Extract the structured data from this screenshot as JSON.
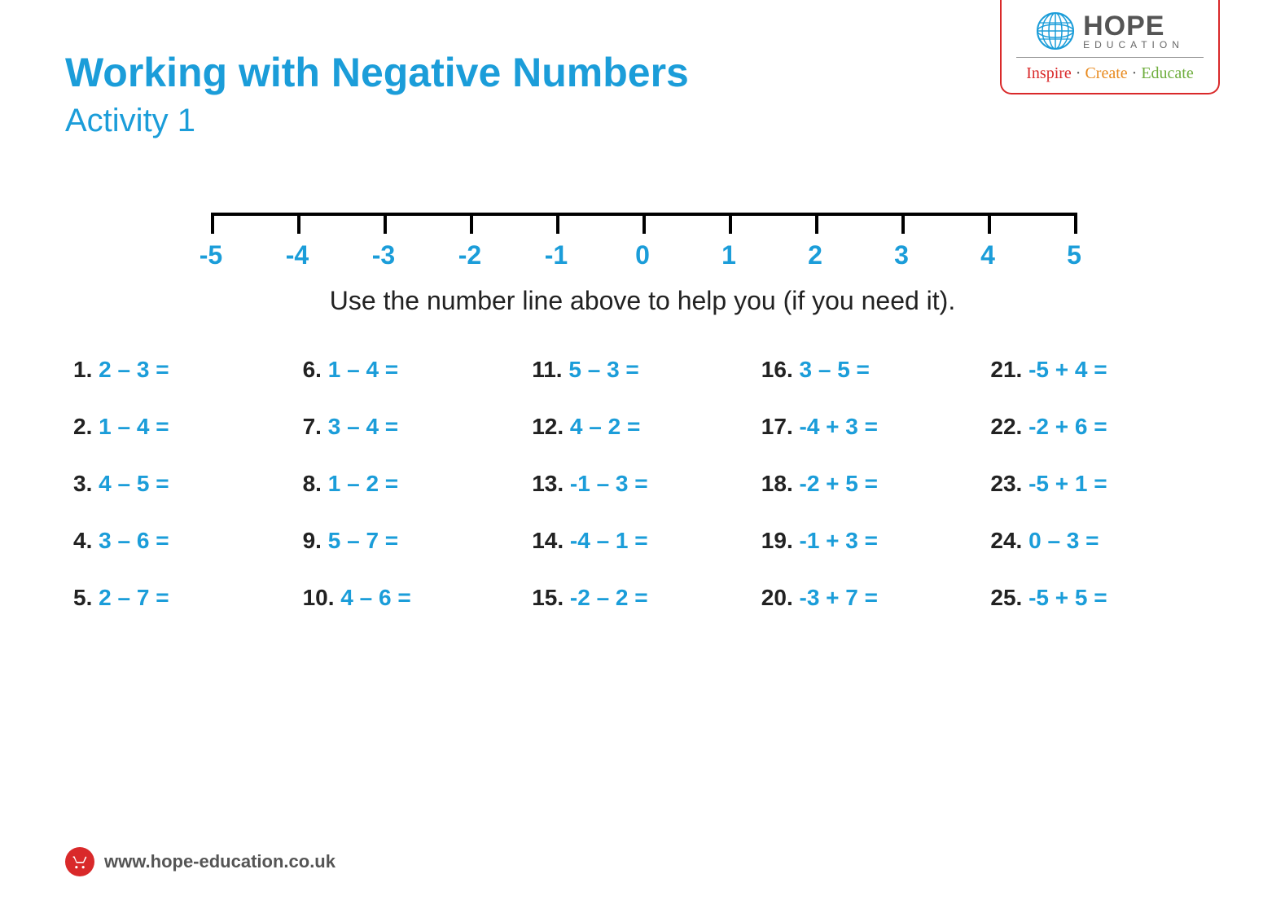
{
  "colors": {
    "primary_blue": "#1b9dd9",
    "text_dark": "#222222",
    "red": "#d9292a",
    "orange": "#e88a1e",
    "green": "#6fae3e",
    "grey": "#555555"
  },
  "header": {
    "title": "Working with Negative Numbers",
    "subtitle": "Activity 1"
  },
  "logo": {
    "brand_top": "HOPE",
    "brand_sub": "EDUCATION",
    "tagline_1": "Inspire",
    "tagline_2": "Create",
    "tagline_3": "Educate"
  },
  "number_line": {
    "min": -5,
    "max": 5,
    "ticks": [
      "-5",
      "-4",
      "-3",
      "-2",
      "-1",
      "0",
      "1",
      "2",
      "3",
      "4",
      "5"
    ],
    "label_color": "#1b9dd9",
    "label_fontsize": 32,
    "line_color": "#000000",
    "line_width": 4
  },
  "instruction": "Use the number line above to help you (if you need it).",
  "problems": [
    {
      "n": "1.",
      "expr": "2 – 3 ="
    },
    {
      "n": "2.",
      "expr": "1 – 4 ="
    },
    {
      "n": "3.",
      "expr": "4 – 5 ="
    },
    {
      "n": "4.",
      "expr": "3 – 6 ="
    },
    {
      "n": "5.",
      "expr": "2 – 7 ="
    },
    {
      "n": "6.",
      "expr": "1 – 4 ="
    },
    {
      "n": "7.",
      "expr": "3 – 4 ="
    },
    {
      "n": "8.",
      "expr": "1 – 2 ="
    },
    {
      "n": "9.",
      "expr": "5 – 7 ="
    },
    {
      "n": "10.",
      "expr": "4 – 6 ="
    },
    {
      "n": "11.",
      "expr": "5 – 3 ="
    },
    {
      "n": "12.",
      "expr": "4 – 2 ="
    },
    {
      "n": "13.",
      "expr": "-1 – 3 ="
    },
    {
      "n": "14.",
      "expr": "-4 – 1 ="
    },
    {
      "n": "15.",
      "expr": "-2 – 2 ="
    },
    {
      "n": "16.",
      "expr": "3 – 5 ="
    },
    {
      "n": "17.",
      "expr": "-4 + 3 ="
    },
    {
      "n": "18.",
      "expr": "-2 + 5 ="
    },
    {
      "n": "19.",
      "expr": "-1 + 3 ="
    },
    {
      "n": "20.",
      "expr": "-3 + 7 ="
    },
    {
      "n": "21.",
      "expr": "-5 + 4 ="
    },
    {
      "n": "22.",
      "expr": "-2 + 6 ="
    },
    {
      "n": "23.",
      "expr": "-5 + 1 ="
    },
    {
      "n": "24.",
      "expr": "0 – 3 ="
    },
    {
      "n": "25.",
      "expr": "-5 + 5 ="
    }
  ],
  "footer": {
    "url": "www.hope-education.co.uk"
  }
}
